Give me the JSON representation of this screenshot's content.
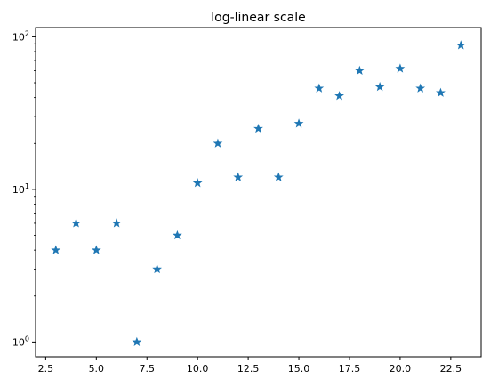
{
  "chart_data": {
    "type": "scatter",
    "title": "log-linear scale",
    "xlabel": "",
    "ylabel": "",
    "x_scale": "linear",
    "y_scale": "log",
    "xlim": [
      2.0,
      24.0
    ],
    "ylim": [
      0.8,
      115
    ],
    "marker": "star",
    "grid": false,
    "legend": "none",
    "colors": {
      "marker": "#1f77b4",
      "axes": "#000000",
      "background": "#ffffff"
    },
    "x_ticks": [
      2.5,
      5.0,
      7.5,
      10.0,
      12.5,
      15.0,
      17.5,
      20.0,
      22.5
    ],
    "x_tick_labels": [
      "2.5",
      "5.0",
      "7.5",
      "10.0",
      "12.5",
      "15.0",
      "17.5",
      "20.0",
      "22.5"
    ],
    "y_ticks": [
      1,
      10,
      100
    ],
    "y_tick_labels": [
      {
        "base": "10",
        "exp": "0"
      },
      {
        "base": "10",
        "exp": "1"
      },
      {
        "base": "10",
        "exp": "2"
      }
    ],
    "series": [
      {
        "x": [
          3,
          4,
          5,
          6,
          7,
          8,
          9,
          10,
          11,
          12,
          13,
          14,
          15,
          16,
          17,
          18,
          19,
          20,
          21,
          22,
          23
        ],
        "y": [
          4,
          6,
          4,
          6,
          1,
          3,
          5,
          11,
          20,
          12,
          25,
          12,
          27,
          46,
          41,
          60,
          47,
          62,
          46,
          43,
          88
        ]
      }
    ]
  }
}
